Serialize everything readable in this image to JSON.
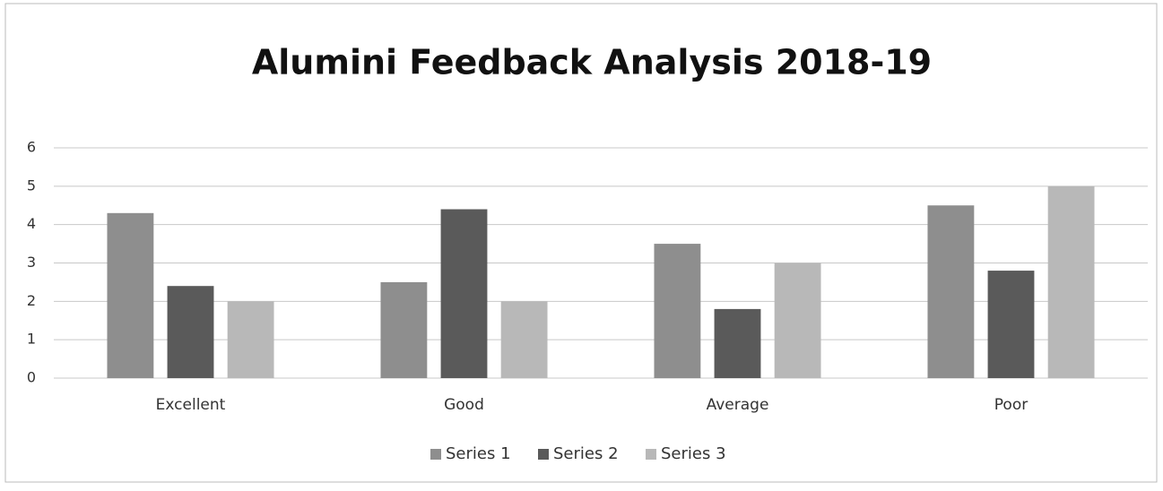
{
  "chart_data": {
    "type": "bar",
    "title": "Alumini Feedback Analysis 2018-19",
    "categories": [
      "Excellent",
      "Good",
      "Average",
      "Poor"
    ],
    "series": [
      {
        "name": "Series 1",
        "color": "#8e8e8e",
        "values": [
          4.3,
          2.5,
          3.5,
          4.5
        ]
      },
      {
        "name": "Series 2",
        "color": "#5a5a5a",
        "values": [
          2.4,
          4.4,
          1.8,
          2.8
        ]
      },
      {
        "name": "Series 3",
        "color": "#b8b8b8",
        "values": [
          2,
          2,
          3,
          5
        ]
      }
    ],
    "ylim": [
      0,
      6
    ],
    "yticks": [
      0,
      1,
      2,
      3,
      4,
      5,
      6
    ],
    "grid": true,
    "legend": "bottom"
  }
}
